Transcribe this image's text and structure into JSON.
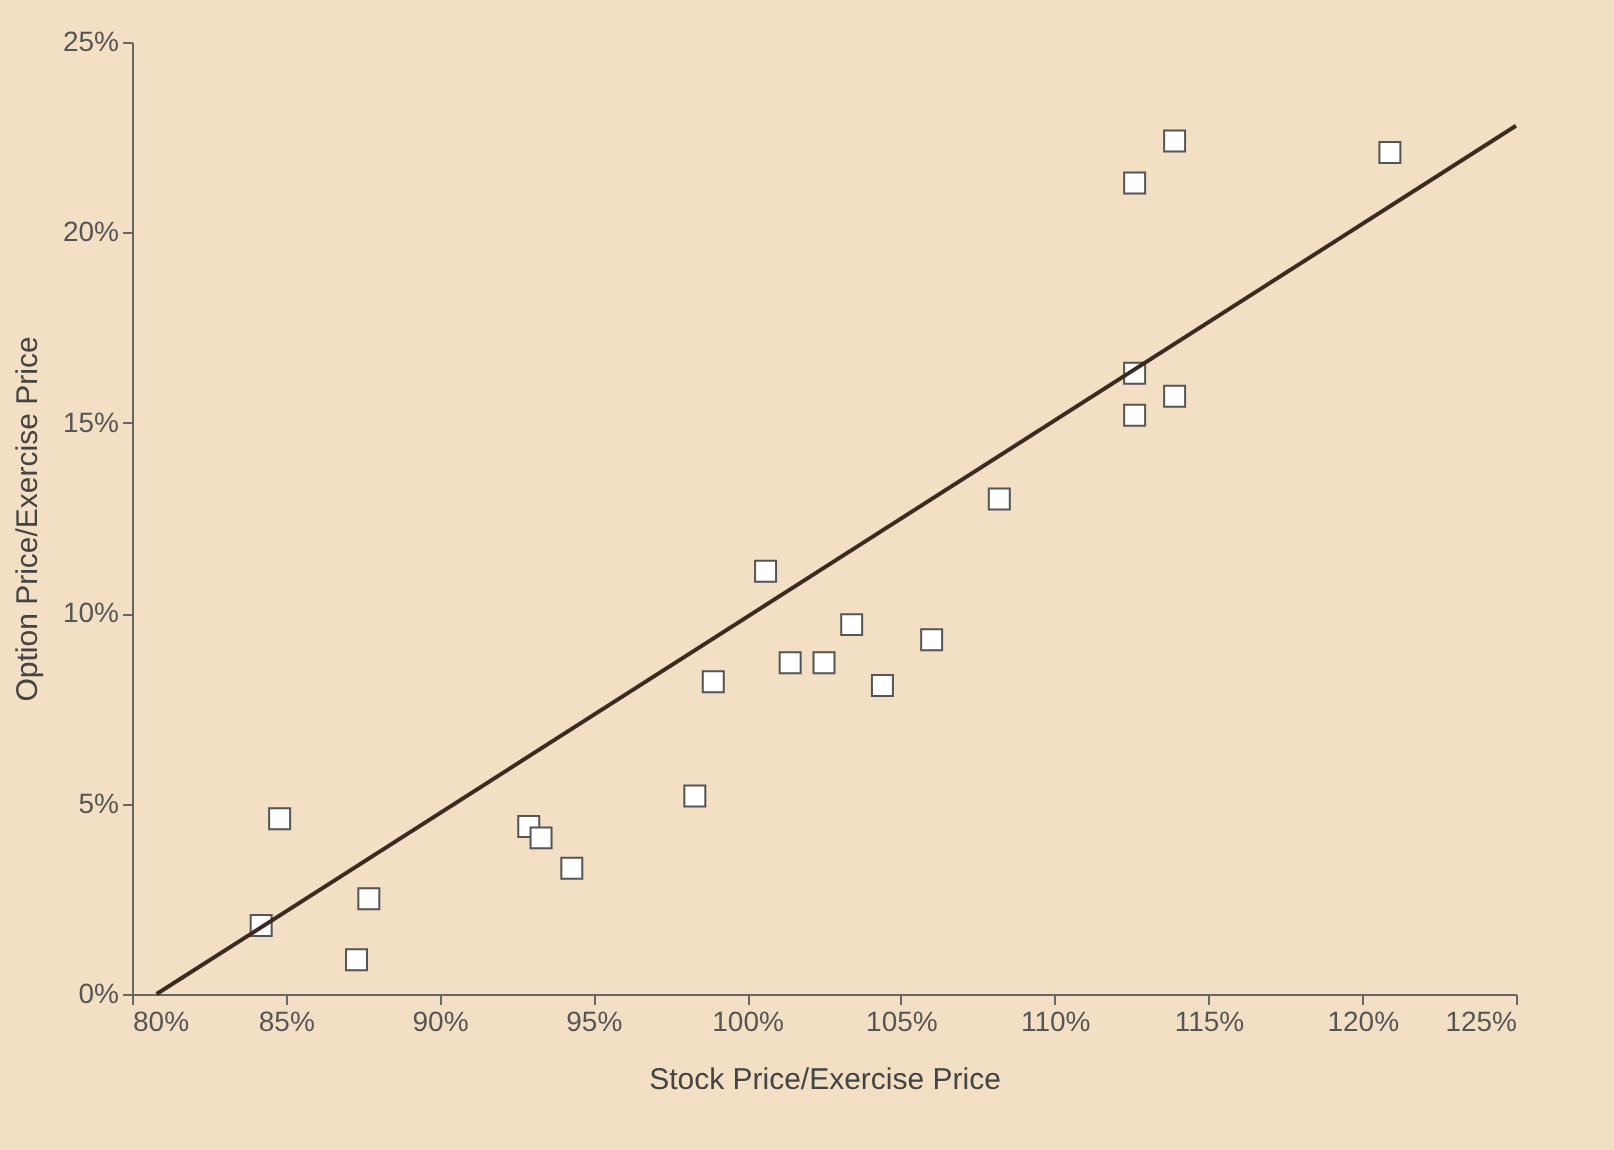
{
  "chart_data": {
    "type": "scatter",
    "xlabel": "Stock Price/Exercise Price",
    "ylabel": "Option Price/Exercise Price",
    "xlim": [
      80,
      125
    ],
    "ylim": [
      0,
      25
    ],
    "grid": false,
    "xticks": [
      {
        "value": 80,
        "label": "80%"
      },
      {
        "value": 85,
        "label": "85%"
      },
      {
        "value": 90,
        "label": "90%"
      },
      {
        "value": 95,
        "label": "95%"
      },
      {
        "value": 100,
        "label": "100%"
      },
      {
        "value": 105,
        "label": "105%"
      },
      {
        "value": 110,
        "label": "110%"
      },
      {
        "value": 115,
        "label": "115%"
      },
      {
        "value": 120,
        "label": "120%"
      },
      {
        "value": 125,
        "label": "125%"
      }
    ],
    "yticks": [
      {
        "value": 0,
        "label": "0%"
      },
      {
        "value": 5,
        "label": "5%"
      },
      {
        "value": 10,
        "label": "10%"
      },
      {
        "value": 15,
        "label": "15%"
      },
      {
        "value": 20,
        "label": "20%"
      },
      {
        "value": 25,
        "label": "25%"
      }
    ],
    "series": [
      {
        "marker": "square",
        "color": "#ffffff",
        "x": [
          84.2,
          84.8,
          87.3,
          87.7,
          92.9,
          93.3,
          94.3,
          98.3,
          98.9,
          100.6,
          101.4,
          102.5,
          103.4,
          104.4,
          106.0,
          108.2,
          112.6,
          112.6,
          112.6,
          113.9,
          113.9,
          120.9
        ],
        "values": [
          1.8,
          4.6,
          0.9,
          2.5,
          4.4,
          4.1,
          3.3,
          5.2,
          8.2,
          11.1,
          8.7,
          8.7,
          9.7,
          8.1,
          9.3,
          13.0,
          21.3,
          16.3,
          15.2,
          22.4,
          15.7,
          22.1
        ]
      },
      {
        "type": "line",
        "marker": "none",
        "color": "#3a2a20",
        "x": [
          80.8,
          125
        ],
        "values": [
          0,
          22.8
        ]
      }
    ]
  }
}
